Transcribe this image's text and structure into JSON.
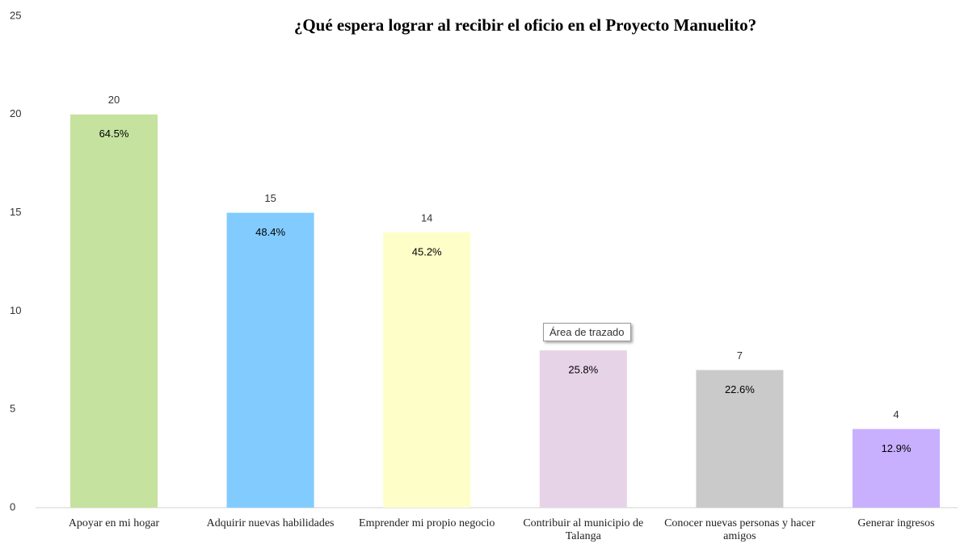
{
  "chart_data": {
    "type": "bar",
    "title": "¿Qué espera lograr al recibir el oficio en el Proyecto Manuelito?",
    "categories": [
      "Apoyar en mi hogar",
      "Adquirir nuevas habilidades",
      "Emprender mi propio negocio",
      "Contribuir al municipio de Talanga",
      "Conocer nuevas personas y hacer amigos",
      "Generar ingresos"
    ],
    "values": [
      20,
      15,
      14,
      8,
      7,
      4
    ],
    "value_labels": [
      "20",
      "15",
      "14",
      null,
      "7",
      "4"
    ],
    "percent_labels": [
      "64.5%",
      "48.4%",
      "45.2%",
      "25.8%",
      "22.6%",
      "12.9%"
    ],
    "colors": [
      "#c5e29f",
      "#82cbfe",
      "#fefec8",
      "#e7d3e8",
      "#cbcaca",
      "#c9b0fe"
    ],
    "ylim": [
      0,
      25
    ],
    "yticks": [
      0,
      5,
      10,
      15,
      20,
      25
    ],
    "grid": false,
    "tooltip": "Área de trazado"
  }
}
